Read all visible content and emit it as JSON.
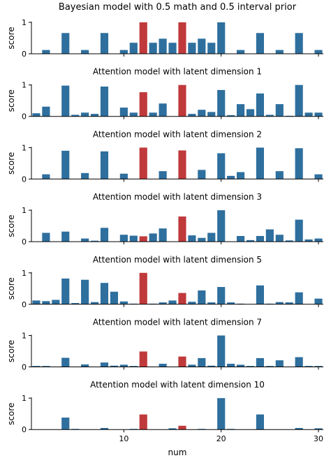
{
  "colors": {
    "default": "#2e6f9e",
    "highlight": "#c0393b"
  },
  "shared": {
    "xlabel": "num",
    "ylabel": "score",
    "xticks": [
      10,
      20,
      30
    ],
    "yticks": [
      0,
      1
    ]
  },
  "chart_data": [
    {
      "type": "bar",
      "title": "Bayesian model with 0.5 math and 0.5 interval prior",
      "x": [
        1,
        2,
        3,
        4,
        5,
        6,
        7,
        8,
        9,
        10,
        11,
        12,
        13,
        14,
        15,
        16,
        17,
        18,
        19,
        20,
        21,
        22,
        23,
        24,
        25,
        26,
        27,
        28,
        29,
        30
      ],
      "values": [
        0,
        0.12,
        0,
        0.66,
        0,
        0.12,
        0,
        0.66,
        0,
        0.12,
        0.35,
        1.0,
        0.35,
        0.48,
        0.35,
        1.0,
        0.35,
        0.48,
        0.35,
        1.0,
        0,
        0.12,
        0,
        0.66,
        0,
        0.12,
        0,
        0.66,
        0,
        0.12
      ],
      "highlight": [
        12,
        16
      ],
      "ylim": [
        0,
        1
      ],
      "xlim": [
        0.5,
        30.5
      ],
      "xlabel": "",
      "ylabel": "score"
    },
    {
      "type": "bar",
      "title": "Attention model with latent dimension 1",
      "x": [
        1,
        2,
        3,
        4,
        5,
        6,
        7,
        8,
        9,
        10,
        11,
        12,
        13,
        14,
        15,
        16,
        17,
        18,
        19,
        20,
        21,
        22,
        23,
        24,
        25,
        26,
        27,
        28,
        29,
        30
      ],
      "values": [
        0.1,
        0.31,
        0,
        0.98,
        0.05,
        0.12,
        0.08,
        0.95,
        0,
        0.28,
        0.12,
        0.77,
        0.12,
        0.41,
        0,
        1.0,
        0.08,
        0.21,
        0.14,
        0.84,
        0.04,
        0.39,
        0.23,
        0.73,
        0.05,
        0.39,
        0.02,
        1.0,
        0.12,
        0.12
      ],
      "highlight": [
        12,
        16
      ],
      "ylim": [
        0,
        1
      ],
      "xlim": [
        0.5,
        30.5
      ],
      "xlabel": "",
      "ylabel": "score"
    },
    {
      "type": "bar",
      "title": "Attention model with latent dimension 2",
      "x": [
        1,
        2,
        3,
        4,
        5,
        6,
        7,
        8,
        9,
        10,
        11,
        12,
        13,
        14,
        15,
        16,
        17,
        18,
        19,
        20,
        21,
        22,
        23,
        24,
        25,
        26,
        27,
        28,
        29,
        30
      ],
      "values": [
        0,
        0.15,
        0,
        0.9,
        0,
        0.19,
        0,
        0.88,
        0,
        0.17,
        0,
        1.0,
        0,
        0.25,
        0,
        0.91,
        0,
        0.29,
        0,
        0.82,
        0.1,
        0.22,
        0,
        1.0,
        0,
        0.25,
        0,
        0.98,
        0,
        0.15
      ],
      "highlight": [
        12,
        16
      ],
      "ylim": [
        0,
        1
      ],
      "xlim": [
        0.5,
        30.5
      ],
      "xlabel": "",
      "ylabel": "score"
    },
    {
      "type": "bar",
      "title": "Attention model with latent dimension 3",
      "x": [
        1,
        2,
        3,
        4,
        5,
        6,
        7,
        8,
        9,
        10,
        11,
        12,
        13,
        14,
        15,
        16,
        17,
        18,
        19,
        20,
        21,
        22,
        23,
        24,
        25,
        26,
        27,
        28,
        29,
        30
      ],
      "values": [
        0,
        0.28,
        0,
        0.32,
        0,
        0.1,
        0.03,
        0.44,
        0,
        0.22,
        0.19,
        0.17,
        0.26,
        0.42,
        0,
        0.8,
        0.2,
        0.12,
        0.28,
        1.0,
        0,
        0.18,
        0.05,
        0.18,
        0.39,
        0.22,
        0.04,
        0.7,
        0.07,
        0.1
      ],
      "highlight": [
        12,
        16
      ],
      "ylim": [
        0,
        1
      ],
      "xlim": [
        0.5,
        30.5
      ],
      "xlabel": "",
      "ylabel": "score"
    },
    {
      "type": "bar",
      "title": "Attention model with latent dimension 5",
      "x": [
        1,
        2,
        3,
        4,
        5,
        6,
        7,
        8,
        9,
        10,
        11,
        12,
        13,
        14,
        15,
        16,
        17,
        18,
        19,
        20,
        21,
        22,
        23,
        24,
        25,
        26,
        27,
        28,
        29,
        30
      ],
      "values": [
        0.12,
        0.1,
        0.14,
        0.82,
        0.04,
        0.78,
        0.07,
        0.68,
        0.4,
        0.09,
        0.02,
        1.0,
        0.02,
        0.06,
        0.12,
        0.36,
        0.08,
        0.44,
        0.06,
        0.55,
        0.06,
        0.02,
        0,
        0.6,
        0.02,
        0.07,
        0.06,
        0.38,
        0,
        0.18
      ],
      "highlight": [
        12,
        16
      ],
      "ylim": [
        0,
        1
      ],
      "xlim": [
        0.5,
        30.5
      ],
      "xlabel": "",
      "ylabel": "score"
    },
    {
      "type": "bar",
      "title": "Attention model with latent dimension 7",
      "x": [
        1,
        2,
        3,
        4,
        5,
        6,
        7,
        8,
        9,
        10,
        11,
        12,
        13,
        14,
        15,
        16,
        17,
        18,
        19,
        20,
        21,
        22,
        23,
        24,
        25,
        26,
        27,
        28,
        29,
        30
      ],
      "values": [
        0.03,
        0.03,
        0,
        0.29,
        0,
        0.08,
        0,
        0.14,
        0.04,
        0.07,
        0.03,
        0.49,
        0,
        0.1,
        0,
        0.33,
        0.07,
        0.28,
        0.04,
        1.0,
        0.1,
        0.07,
        0.03,
        0.28,
        0.03,
        0.21,
        0,
        0.31,
        0.03,
        0.03
      ],
      "highlight": [
        12,
        16
      ],
      "ylim": [
        0,
        1
      ],
      "xlim": [
        0.5,
        30.5
      ],
      "xlabel": "",
      "ylabel": "score"
    },
    {
      "type": "bar",
      "title": "Attention model with latent dimension 10",
      "x": [
        1,
        2,
        3,
        4,
        5,
        6,
        7,
        8,
        9,
        10,
        11,
        12,
        13,
        14,
        15,
        16,
        17,
        18,
        19,
        20,
        21,
        22,
        23,
        24,
        25,
        26,
        27,
        28,
        29,
        30
      ],
      "values": [
        0,
        0,
        0,
        0.38,
        0.02,
        0,
        0,
        0.05,
        0,
        0,
        0.02,
        0.48,
        0,
        0,
        0.04,
        0.12,
        0,
        0.02,
        0,
        1.0,
        0.02,
        0,
        0,
        0.48,
        0,
        0,
        0,
        0.05,
        0,
        0.04
      ],
      "highlight": [
        12,
        16
      ],
      "ylim": [
        0,
        1
      ],
      "xlim": [
        0.5,
        30.5
      ],
      "xlabel": "num",
      "ylabel": "score"
    }
  ]
}
